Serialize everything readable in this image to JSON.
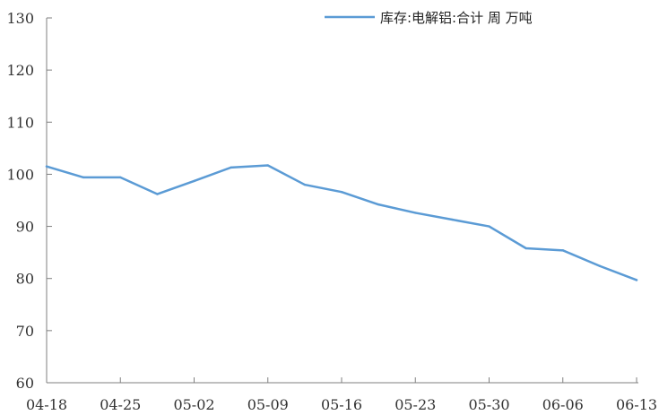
{
  "chart_data": {
    "type": "line",
    "title": "",
    "xlabel": "",
    "ylabel": "",
    "ylim": [
      60,
      130
    ],
    "yticks": [
      60,
      70,
      80,
      90,
      100,
      110,
      120,
      130
    ],
    "grid": false,
    "legend_position": "top-right",
    "x_tick_labels": [
      "04-18",
      "04-25",
      "05-02",
      "05-09",
      "05-16",
      "05-23",
      "05-30",
      "06-06",
      "06-13"
    ],
    "x": [
      "04-18",
      "04-21",
      "04-25",
      "04-28",
      "05-02",
      "05-05",
      "05-09",
      "05-12",
      "05-16",
      "05-19",
      "05-23",
      "05-26",
      "05-30",
      "06-02",
      "06-06",
      "06-09",
      "06-13"
    ],
    "series": [
      {
        "name": "库存:电解铝:合计 周 万吨",
        "color": "#5b9bd5",
        "values": [
          101.5,
          99.4,
          99.4,
          96.2,
          98.7,
          101.3,
          101.7,
          98.0,
          96.6,
          94.2,
          92.6,
          91.3,
          90.0,
          85.8,
          85.4,
          82.4,
          79.7
        ]
      }
    ]
  }
}
